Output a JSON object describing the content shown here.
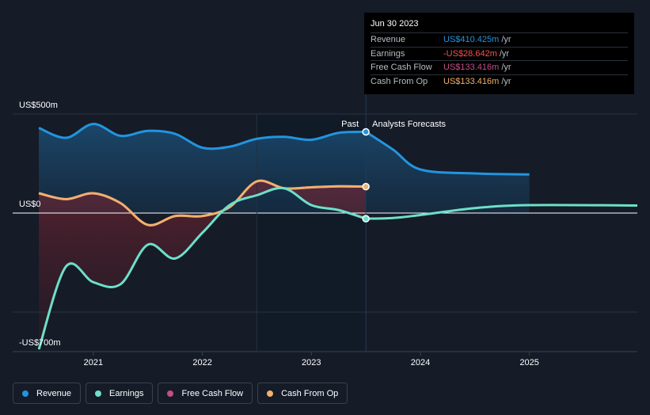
{
  "chart_data": {
    "type": "area",
    "y_axis": {
      "top_label": "US$500m",
      "zero_label": "US$0",
      "bottom_label": "-US$700m",
      "ylim": [
        -700,
        500
      ]
    },
    "x_axis": {
      "ticks": [
        "2021",
        "2022",
        "2023",
        "2024",
        "2025"
      ],
      "tick_values": [
        2021,
        2022,
        2023,
        2024,
        2025
      ],
      "xlim": [
        2020.26,
        2025.99
      ]
    },
    "divider": {
      "x": 2023.5,
      "past_label": "Past",
      "forecast_label": "Analysts Forecasts"
    },
    "series": [
      {
        "name": "Revenue",
        "color": "#2394df",
        "points": [
          [
            2020.5,
            430
          ],
          [
            2020.75,
            380
          ],
          [
            2021.0,
            450
          ],
          [
            2021.25,
            390
          ],
          [
            2021.5,
            415
          ],
          [
            2021.75,
            400
          ],
          [
            2022.0,
            330
          ],
          [
            2022.25,
            335
          ],
          [
            2022.5,
            375
          ],
          [
            2022.75,
            385
          ],
          [
            2023.0,
            370
          ],
          [
            2023.25,
            405
          ],
          [
            2023.5,
            410
          ]
        ],
        "forecast": [
          [
            2023.5,
            410
          ],
          [
            2023.75,
            320
          ],
          [
            2024.0,
            220
          ],
          [
            2024.5,
            200
          ],
          [
            2025.0,
            195
          ]
        ]
      },
      {
        "name": "Earnings",
        "color": "#6ce0c8",
        "points": [
          [
            2020.5,
            -690
          ],
          [
            2020.75,
            -270
          ],
          [
            2021.0,
            -350
          ],
          [
            2021.25,
            -360
          ],
          [
            2021.5,
            -160
          ],
          [
            2021.75,
            -230
          ],
          [
            2022.0,
            -100
          ],
          [
            2022.25,
            40
          ],
          [
            2022.5,
            90
          ],
          [
            2022.75,
            125
          ],
          [
            2023.0,
            40
          ],
          [
            2023.25,
            15
          ],
          [
            2023.5,
            -28.642
          ]
        ],
        "forecast": [
          [
            2023.5,
            -28.642
          ],
          [
            2023.75,
            -25
          ],
          [
            2024.0,
            -10
          ],
          [
            2024.5,
            25
          ],
          [
            2025.0,
            40
          ],
          [
            2025.99,
            38
          ]
        ]
      },
      {
        "name": "Free Cash Flow",
        "color": "#c24f86",
        "points": [
          [
            2020.5,
            100
          ],
          [
            2020.75,
            70
          ],
          [
            2021.0,
            100
          ],
          [
            2021.25,
            50
          ],
          [
            2021.5,
            -60
          ],
          [
            2021.75,
            -15
          ],
          [
            2022.0,
            -15
          ],
          [
            2022.25,
            30
          ],
          [
            2022.5,
            160
          ],
          [
            2022.75,
            125
          ],
          [
            2023.0,
            130
          ],
          [
            2023.25,
            135
          ],
          [
            2023.5,
            133.416
          ]
        ]
      },
      {
        "name": "Cash From Op",
        "color": "#f1b06c",
        "points": [
          [
            2020.5,
            100
          ],
          [
            2020.75,
            70
          ],
          [
            2021.0,
            100
          ],
          [
            2021.25,
            50
          ],
          [
            2021.5,
            -60
          ],
          [
            2021.75,
            -15
          ],
          [
            2022.0,
            -15
          ],
          [
            2022.25,
            30
          ],
          [
            2022.5,
            160
          ],
          [
            2022.75,
            125
          ],
          [
            2023.0,
            130
          ],
          [
            2023.25,
            135
          ],
          [
            2023.5,
            133.416
          ]
        ]
      }
    ]
  },
  "tooltip": {
    "date": "Jun 30 2023",
    "rows": [
      {
        "label": "Revenue",
        "value": "US$410.425m",
        "unit": "/yr",
        "color": "#2394df"
      },
      {
        "label": "Earnings",
        "value": "-US$28.642m",
        "unit": "/yr",
        "color": "#ff4d4d"
      },
      {
        "label": "Free Cash Flow",
        "value": "US$133.416m",
        "unit": "/yr",
        "color": "#c24f86"
      },
      {
        "label": "Cash From Op",
        "value": "US$133.416m",
        "unit": "/yr",
        "color": "#f1b06c"
      }
    ]
  },
  "legend": [
    {
      "label": "Revenue",
      "color": "#2394df"
    },
    {
      "label": "Earnings",
      "color": "#6ce0c8"
    },
    {
      "label": "Free Cash Flow",
      "color": "#c24f86"
    },
    {
      "label": "Cash From Op",
      "color": "#f1b06c"
    }
  ]
}
